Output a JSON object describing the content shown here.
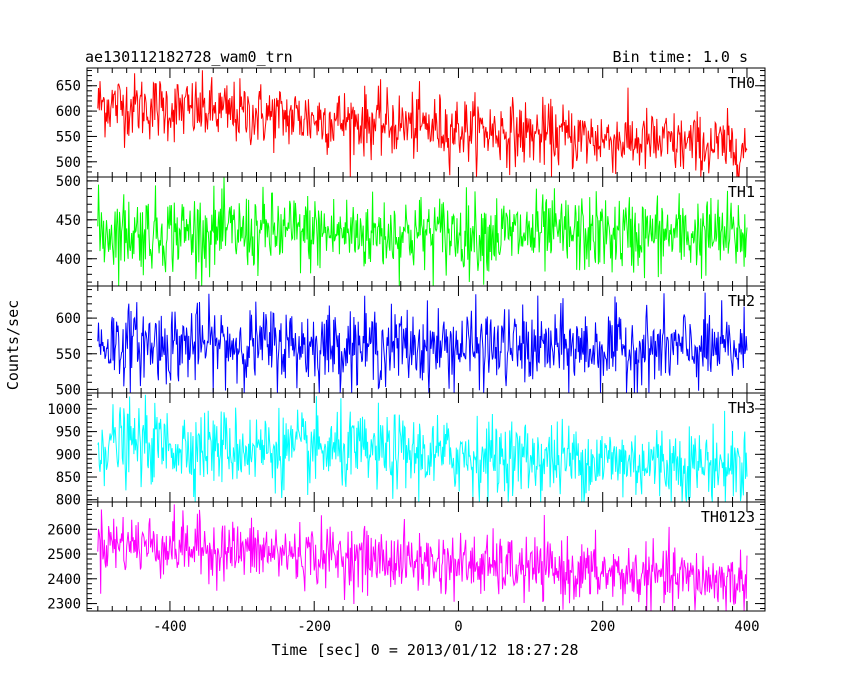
{
  "chart_data": {
    "type": "line",
    "title": "ae130112182728_wam0_trn",
    "subtitle": "Bin time: 1.0 s",
    "xlabel": "Time [sec] 0 = 2013/01/12 18:27:28",
    "ylabel": "Counts/sec",
    "xlim": [
      -515,
      425
    ],
    "data_x_range": [
      -500,
      400
    ],
    "x_ticks": [
      -400,
      -200,
      0,
      200,
      400
    ],
    "panels": [
      {
        "name": "TH0",
        "color": "#ff0000",
        "ylim": [
          470,
          685
        ],
        "y_ticks": [
          500,
          550,
          600,
          650
        ],
        "trend": [
          615,
          525
        ],
        "noise": 32
      },
      {
        "name": "TH1",
        "color": "#00ff00",
        "ylim": [
          365,
          505
        ],
        "y_ticks": [
          400,
          450,
          500
        ],
        "trend": [
          435,
          430
        ],
        "noise": 25
      },
      {
        "name": "TH2",
        "color": "#0000ff",
        "ylim": [
          495,
          645
        ],
        "y_ticks": [
          500,
          550,
          600
        ],
        "trend": [
          565,
          555
        ],
        "noise": 27
      },
      {
        "name": "TH3",
        "color": "#00ffff",
        "ylim": [
          795,
          1035
        ],
        "y_ticks": [
          800,
          850,
          900,
          950,
          1000
        ],
        "trend": [
          925,
          875
        ],
        "noise": 42
      },
      {
        "name": "TH0123",
        "color": "#ff00ff",
        "ylim": [
          2270,
          2710
        ],
        "y_ticks": [
          2300,
          2400,
          2500,
          2600
        ],
        "trend": [
          2550,
          2385
        ],
        "noise": 62
      }
    ]
  }
}
